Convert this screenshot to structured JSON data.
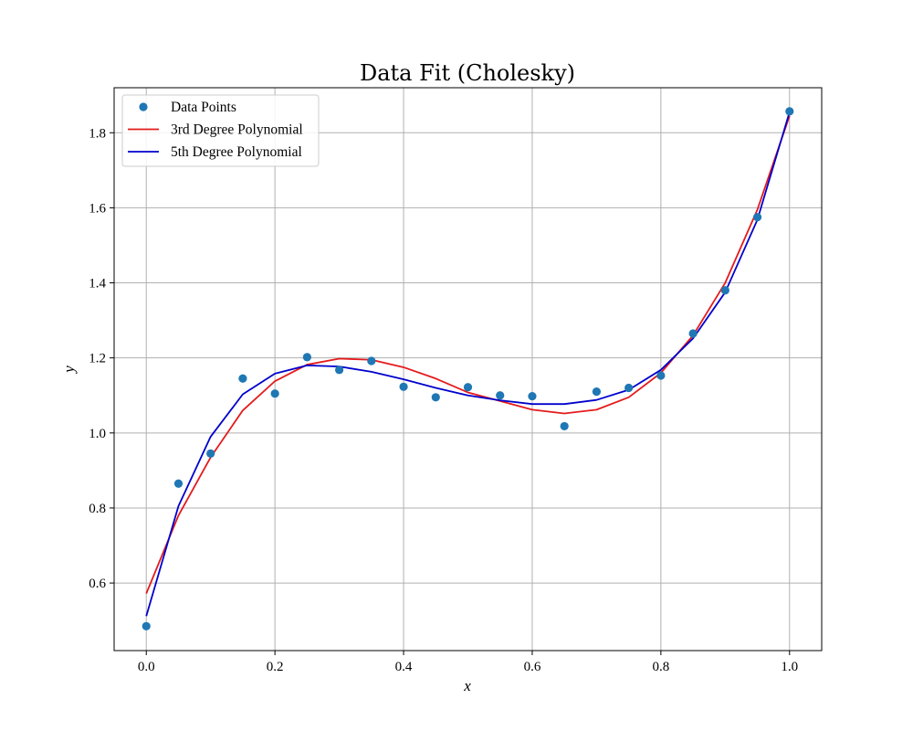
{
  "chart_data": {
    "type": "line",
    "title": "Data Fit (Cholesky)",
    "xlabel": "x",
    "ylabel": "y",
    "xlim": [
      -0.05,
      1.05
    ],
    "ylim": [
      0.42,
      1.92
    ],
    "xticks": [
      0.0,
      0.2,
      0.4,
      0.6,
      0.8,
      1.0
    ],
    "xtick_labels": [
      "0.0",
      "0.2",
      "0.4",
      "0.6",
      "0.8",
      "1.0"
    ],
    "yticks": [
      0.6,
      0.8,
      1.0,
      1.2,
      1.4,
      1.6,
      1.8
    ],
    "ytick_labels": [
      "0.6",
      "0.8",
      "1.0",
      "1.2",
      "1.4",
      "1.6",
      "1.8"
    ],
    "grid": true,
    "legend_position": "top-left",
    "x": [
      0.0,
      0.05,
      0.1,
      0.15,
      0.2,
      0.25,
      0.3,
      0.35,
      0.4,
      0.45,
      0.5,
      0.55,
      0.6,
      0.65,
      0.7,
      0.75,
      0.8,
      0.85,
      0.9,
      0.95,
      1.0
    ],
    "series": [
      {
        "name": "Data Points",
        "kind": "scatter",
        "color": "#1f77b4",
        "values": [
          0.485,
          0.865,
          0.945,
          1.145,
          1.105,
          1.202,
          1.168,
          1.192,
          1.123,
          1.095,
          1.122,
          1.1,
          1.098,
          1.018,
          1.11,
          1.12,
          1.153,
          1.265,
          1.38,
          1.575,
          1.857
        ]
      },
      {
        "name": "3rd Degree Polynomial",
        "kind": "line",
        "color": "#e41a1c",
        "values": [
          0.572,
          0.78,
          0.935,
          1.06,
          1.138,
          1.182,
          1.198,
          1.195,
          1.175,
          1.145,
          1.108,
          1.085,
          1.062,
          1.052,
          1.062,
          1.095,
          1.16,
          1.26,
          1.4,
          1.595,
          1.845
        ]
      },
      {
        "name": "5th Degree Polynomial",
        "kind": "line",
        "color": "#0000cd",
        "values": [
          0.512,
          0.805,
          0.99,
          1.103,
          1.158,
          1.18,
          1.177,
          1.163,
          1.143,
          1.12,
          1.1,
          1.087,
          1.077,
          1.077,
          1.088,
          1.115,
          1.168,
          1.252,
          1.375,
          1.568,
          1.855
        ]
      }
    ]
  }
}
